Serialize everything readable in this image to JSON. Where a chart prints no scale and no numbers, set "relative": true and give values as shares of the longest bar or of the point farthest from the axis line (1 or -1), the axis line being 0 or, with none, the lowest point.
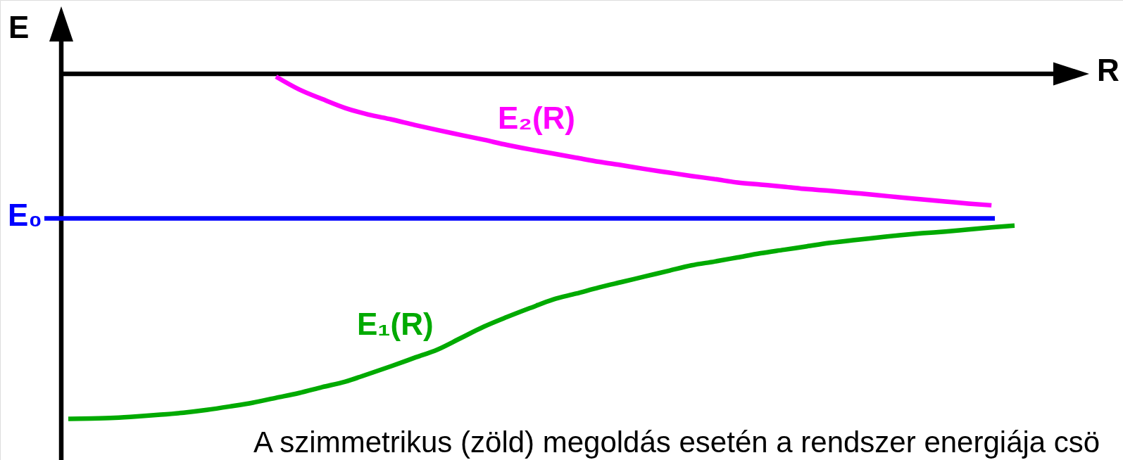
{
  "chart_data": {
    "type": "line",
    "relative": true,
    "xlabel": "R",
    "ylabel": "E",
    "categories": [
      null,
      null,
      null,
      null,
      null,
      null,
      null,
      null,
      null,
      null,
      null,
      null,
      null,
      null,
      null,
      null,
      null,
      null,
      null,
      null,
      null,
      null,
      null,
      null,
      null,
      null,
      null,
      null,
      null,
      null,
      null,
      null,
      null,
      null,
      null,
      null,
      null,
      null,
      null,
      null,
      null,
      null
    ],
    "series": [
      {
        "name": "E₁(R)",
        "color": "#00aa00",
        "values": [
          -1.0,
          -0.999,
          -0.997,
          -0.993,
          -0.988,
          -0.982,
          -0.974,
          -0.964,
          -0.953,
          -0.939,
          -0.925,
          -0.908,
          -0.892,
          -0.87,
          -0.847,
          -0.823,
          -0.799,
          -0.766,
          -0.733,
          -0.705,
          -0.679,
          -0.654,
          -0.637,
          -0.619,
          -0.603,
          -0.587,
          -0.571,
          -0.555,
          -0.544,
          -0.532,
          -0.52,
          -0.51,
          -0.5,
          -0.49,
          -0.482,
          -0.475,
          -0.468,
          -0.462,
          -0.457,
          -0.451,
          -0.445,
          -0.44
        ]
      },
      {
        "name": "E₂(R)",
        "color": "#ff00ff",
        "values": [
          null,
          null,
          null,
          null,
          null,
          null,
          null,
          null,
          null,
          -0.008,
          -0.045,
          -0.073,
          -0.099,
          -0.118,
          -0.132,
          -0.148,
          -0.163,
          -0.177,
          -0.191,
          -0.206,
          -0.219,
          -0.231,
          -0.243,
          -0.255,
          -0.265,
          -0.276,
          -0.286,
          -0.296,
          -0.305,
          -0.315,
          -0.321,
          -0.327,
          -0.334,
          -0.339,
          -0.345,
          -0.351,
          -0.358,
          -0.364,
          -0.37,
          -0.376,
          -0.381,
          null
        ]
      }
    ],
    "ref_lines": [
      {
        "axis": "y",
        "value": -0.419,
        "label": "E₀",
        "color": "#0000ff"
      }
    ],
    "annotations": [
      "A szimmetrikus (zöld) megoldás esetén a rendszer energiája csö"
    ]
  }
}
